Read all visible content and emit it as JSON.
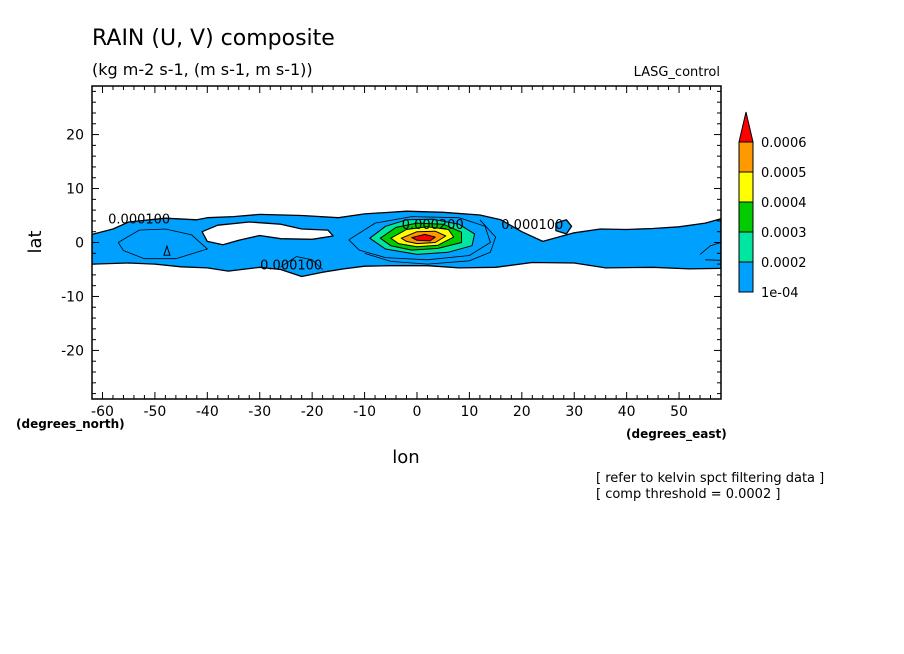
{
  "chart_data": {
    "type": "heatmap",
    "title": "RAIN (U, V) composite",
    "subtitle": "(kg m-2 s-1, (m s-1, m s-1))",
    "run_label": "LASG_control",
    "xlabel": "lon",
    "ylabel": "lat",
    "x_unit_label": "(degrees_east)",
    "y_unit_label": "(degrees_north)",
    "xlim": [
      -62,
      58
    ],
    "ylim": [
      -29,
      29
    ],
    "x_ticks": [
      -60,
      -50,
      -40,
      -30,
      -20,
      -10,
      0,
      10,
      20,
      30,
      40,
      50
    ],
    "y_ticks": [
      -20,
      -10,
      0,
      10,
      20
    ],
    "colorbar": {
      "levels": [
        "1e-04",
        "0.0002",
        "0.0003",
        "0.0004",
        "0.0005",
        "0.0006"
      ],
      "colors": [
        "#00a0ff",
        "#00e6a0",
        "#00cc00",
        "#ffff00",
        "#ff9900",
        "#ff0000"
      ],
      "extend": "max"
    },
    "contour_labels": [
      {
        "text": "0.000100",
        "lon": -53,
        "lat": 3.5
      },
      {
        "text": "0.000100",
        "lon": -24,
        "lat": -5
      },
      {
        "text": "0.000200",
        "lon": 3,
        "lat": 2.5
      },
      {
        "text": "0.000100",
        "lon": 22,
        "lat": 2.5
      }
    ],
    "regions": [
      {
        "level": 0,
        "polygon": [
          [
            -62,
            1.5
          ],
          [
            -58,
            2.5
          ],
          [
            -55,
            3.8
          ],
          [
            -48,
            4.5
          ],
          [
            -42,
            4.2
          ],
          [
            -40,
            4.6
          ],
          [
            -35,
            4.8
          ],
          [
            -30,
            5.2
          ],
          [
            -22,
            5
          ],
          [
            -15,
            4.6
          ],
          [
            -10,
            5.3
          ],
          [
            -2,
            5.8
          ],
          [
            5,
            5.6
          ],
          [
            12,
            5.1
          ],
          [
            16,
            4.2
          ],
          [
            20,
            2
          ],
          [
            24,
            0.2
          ],
          [
            30,
            1.8
          ],
          [
            35,
            2.5
          ],
          [
            40,
            2.4
          ],
          [
            45,
            2.6
          ],
          [
            50,
            2.9
          ],
          [
            55,
            3.6
          ],
          [
            58,
            4.4
          ],
          [
            58,
            -4.8
          ],
          [
            52,
            -4.9
          ],
          [
            45,
            -4.6
          ],
          [
            36,
            -4.7
          ],
          [
            30,
            -3.8
          ],
          [
            22,
            -3.7
          ],
          [
            15,
            -4.6
          ],
          [
            8,
            -4.7
          ],
          [
            2,
            -4.3
          ],
          [
            -5,
            -4.3
          ],
          [
            -10,
            -4.4
          ],
          [
            -14,
            -4.9
          ],
          [
            -18,
            -5.5
          ],
          [
            -22,
            -6.3
          ],
          [
            -26,
            -5
          ],
          [
            -30,
            -4.6
          ],
          [
            -36,
            -5.3
          ],
          [
            -40,
            -4.7
          ],
          [
            -45,
            -4.5
          ],
          [
            -50,
            -4
          ],
          [
            -55,
            -3.8
          ],
          [
            -62,
            -4
          ]
        ]
      },
      {
        "level": -1,
        "polygon": [
          [
            -41,
            2
          ],
          [
            -38,
            3.2
          ],
          [
            -32,
            3.8
          ],
          [
            -26,
            3.4
          ],
          [
            -22,
            2.5
          ],
          [
            -17,
            2.3
          ],
          [
            -16,
            1.2
          ],
          [
            -20,
            0.6
          ],
          [
            -26,
            0.7
          ],
          [
            -30,
            1.3
          ],
          [
            -34,
            0.4
          ],
          [
            -37,
            -0.4
          ],
          [
            -40,
            0.2
          ]
        ]
      },
      {
        "level": 0,
        "polygon": [
          [
            26.5,
            3.6
          ],
          [
            28.5,
            4.2
          ],
          [
            29.5,
            3
          ],
          [
            28.5,
            1.6
          ],
          [
            26.5,
            2.2
          ]
        ]
      },
      {
        "level": 1,
        "polygon": [
          [
            -9,
            0.8
          ],
          [
            -6,
            3
          ],
          [
            -2,
            4.2
          ],
          [
            3,
            4.3
          ],
          [
            8,
            3.4
          ],
          [
            11,
            1.6
          ],
          [
            10.5,
            -0.6
          ],
          [
            6,
            -1.8
          ],
          [
            0,
            -2.2
          ],
          [
            -6,
            -1.2
          ]
        ]
      },
      {
        "level": 2,
        "polygon": [
          [
            -7,
            0.8
          ],
          [
            -4,
            2.8
          ],
          [
            0,
            3.6
          ],
          [
            5,
            3.4
          ],
          [
            8.5,
            1.9
          ],
          [
            8.5,
            0
          ],
          [
            4,
            -1.1
          ],
          [
            -1,
            -1.4
          ],
          [
            -5,
            -0.6
          ]
        ]
      },
      {
        "level": 3,
        "polygon": [
          [
            -5,
            0.8
          ],
          [
            -2,
            2.4
          ],
          [
            2,
            2.9
          ],
          [
            6,
            2.4
          ],
          [
            7,
            1
          ],
          [
            4,
            -0.5
          ],
          [
            0,
            -0.8
          ],
          [
            -3.5,
            -0.2
          ]
        ]
      },
      {
        "level": 4,
        "polygon": [
          [
            -3,
            0.8
          ],
          [
            0,
            2
          ],
          [
            3.5,
            2.1
          ],
          [
            5.5,
            1.2
          ],
          [
            3.5,
            0
          ],
          [
            0,
            -0.2
          ],
          [
            -2,
            0.2
          ]
        ]
      },
      {
        "level": 5,
        "polygon": [
          [
            -1,
            0.9
          ],
          [
            1.5,
            1.5
          ],
          [
            3.5,
            1
          ],
          [
            2.5,
            0.3
          ],
          [
            0,
            0.4
          ]
        ]
      }
    ],
    "outline_contours": [
      [
        [
          -57,
          0
        ],
        [
          -53,
          2.3
        ],
        [
          -48,
          2.5
        ],
        [
          -43,
          1.4
        ],
        [
          -40,
          -1.2
        ],
        [
          -46,
          -3
        ],
        [
          -52,
          -3
        ],
        [
          -56,
          -1.5
        ],
        [
          -57,
          0
        ]
      ],
      [
        [
          -13,
          0.5
        ],
        [
          -8,
          3.6
        ],
        [
          -1,
          4.8
        ],
        [
          8,
          4.6
        ],
        [
          13,
          3
        ],
        [
          14,
          0
        ],
        [
          10,
          -2.4
        ],
        [
          2,
          -3.2
        ],
        [
          -6,
          -2.8
        ],
        [
          -11,
          -1.4
        ],
        [
          -13,
          0.5
        ]
      ],
      [
        [
          -10,
          -2
        ],
        [
          -5,
          -3.5
        ],
        [
          2,
          -4
        ],
        [
          10,
          -3.4
        ],
        [
          14,
          -1.8
        ],
        [
          15,
          1
        ],
        [
          12,
          4.2
        ]
      ],
      [
        [
          -26,
          -4.5
        ],
        [
          -23,
          -2.6
        ],
        [
          -20,
          -3.2
        ],
        [
          -18,
          -5
        ]
      ],
      [
        [
          54,
          -2.2
        ],
        [
          56,
          -0.6
        ],
        [
          58,
          0
        ],
        [
          58,
          -3.3
        ],
        [
          55,
          -3.2
        ]
      ]
    ],
    "small_markers": [
      {
        "lon": -47.7,
        "lat": -1.8
      }
    ]
  },
  "annotations": {
    "refer_note": "[ refer to kelvin spct filtering data ]",
    "threshold_note": "[ comp threshold = 0.0002 ]"
  }
}
